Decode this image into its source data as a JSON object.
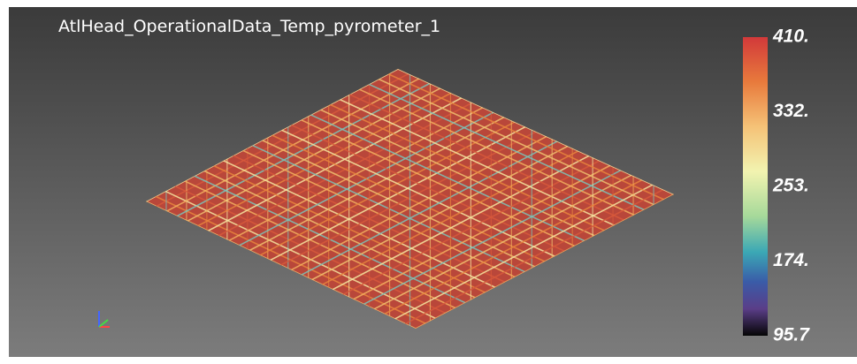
{
  "title": "AtlHead_OperationalData_Temp_pyrometer_1",
  "colorbar": {
    "labels": [
      "410.",
      "332.",
      "253.",
      "174.",
      "95.7"
    ]
  }
}
